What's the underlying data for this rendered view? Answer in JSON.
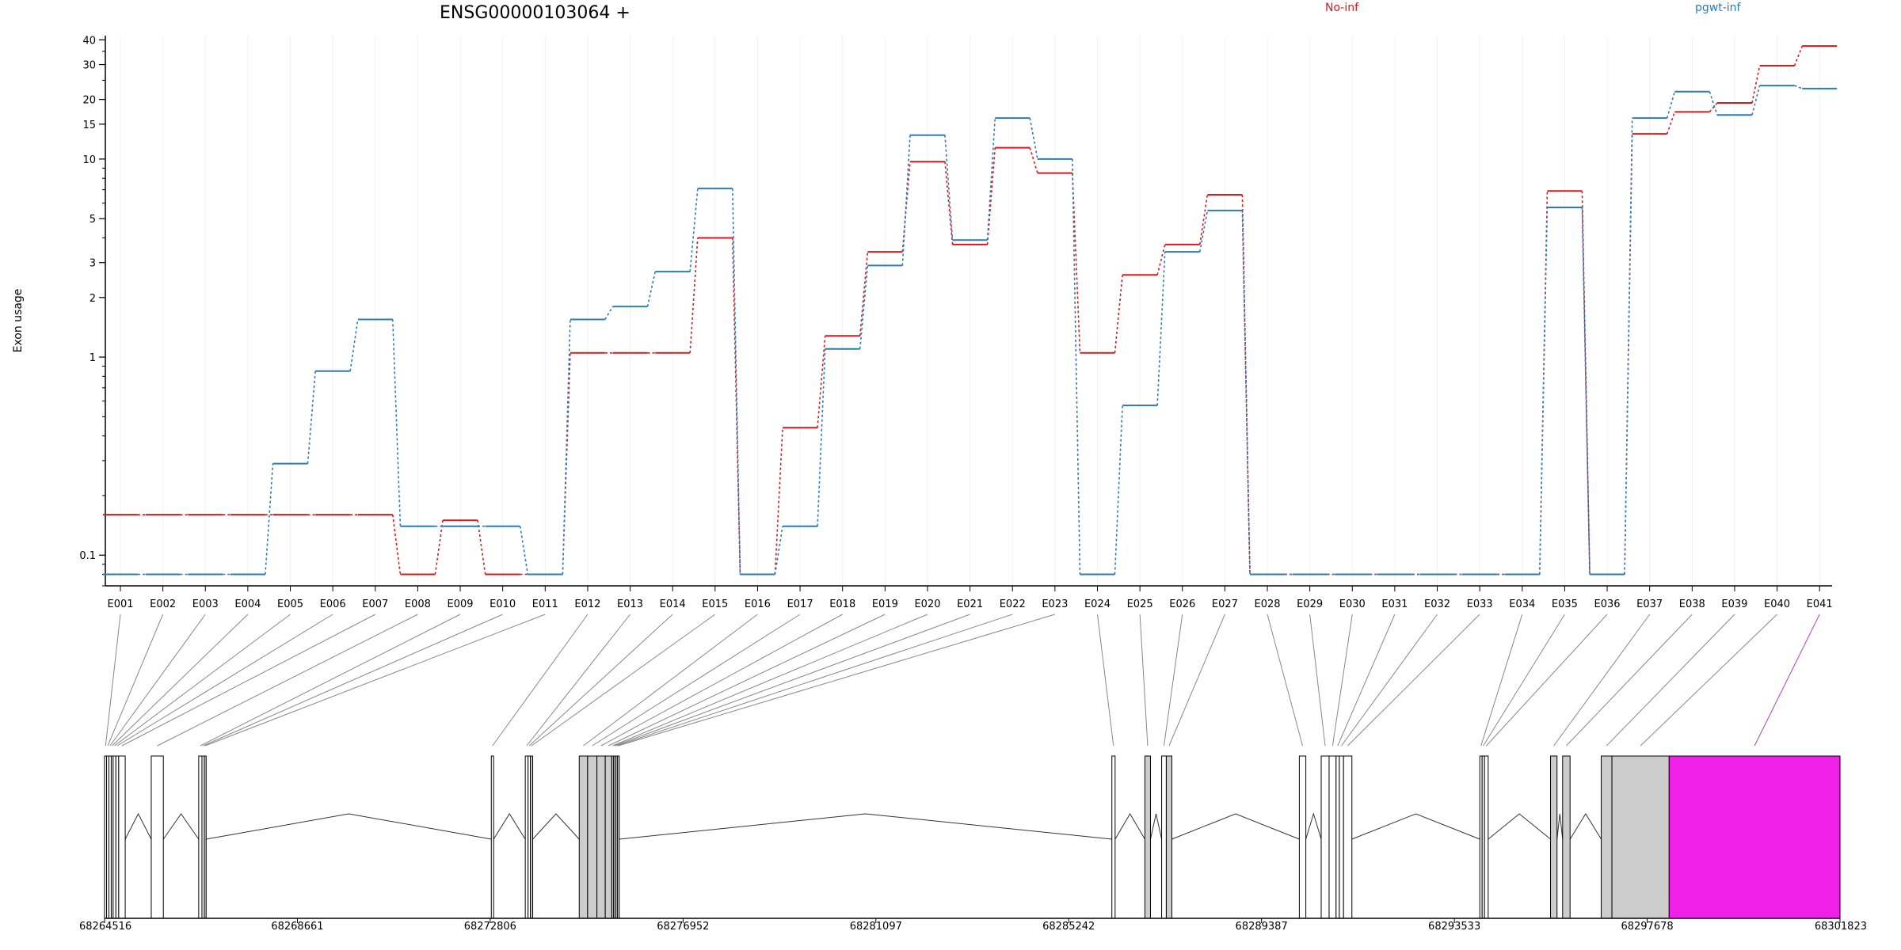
{
  "chart_data": {
    "type": "line",
    "title": "ENSG00000103064 +",
    "ylabel": "Exon usage",
    "xlabel": "",
    "y_scale": "log",
    "ylim": [
      0.07,
      42
    ],
    "y_ticks": [
      0.1,
      1,
      2,
      3,
      5,
      10,
      15,
      20,
      30,
      40
    ],
    "grid": "vertical-light",
    "legend_placement": "top-right",
    "categories": [
      "E001",
      "E002",
      "E003",
      "E004",
      "E005",
      "E006",
      "E007",
      "E008",
      "E009",
      "E010",
      "E011",
      "E012",
      "E013",
      "E014",
      "E015",
      "E016",
      "E017",
      "E018",
      "E019",
      "E020",
      "E021",
      "E022",
      "E023",
      "E024",
      "E025",
      "E026",
      "E027",
      "E028",
      "E029",
      "E030",
      "E031",
      "E032",
      "E033",
      "E034",
      "E035",
      "E036",
      "E037",
      "E038",
      "E039",
      "E040",
      "E041"
    ],
    "series": [
      {
        "name": "No-inf",
        "color": "#d7191c",
        "values": [
          0.16,
          0.16,
          0.16,
          0.16,
          0.16,
          0.16,
          0.16,
          0.08,
          0.15,
          0.08,
          0.08,
          1.05,
          1.05,
          1.05,
          4.0,
          0.08,
          0.44,
          1.28,
          3.4,
          9.7,
          3.7,
          11.4,
          8.5,
          1.05,
          2.6,
          3.7,
          6.6,
          0.08,
          0.08,
          0.08,
          0.08,
          0.08,
          0.08,
          0.08,
          6.9,
          0.08,
          13.4,
          17.3,
          19.2,
          29.6,
          37.2
        ]
      },
      {
        "name": "pgwt-inf",
        "color": "#2c7bb6",
        "values": [
          0.08,
          0.08,
          0.08,
          0.08,
          0.29,
          0.85,
          1.55,
          0.14,
          0.14,
          0.14,
          0.08,
          1.55,
          1.8,
          2.7,
          7.1,
          0.08,
          0.14,
          1.1,
          2.9,
          13.2,
          3.9,
          16.1,
          10.0,
          0.08,
          0.57,
          3.4,
          5.5,
          0.08,
          0.08,
          0.08,
          0.08,
          0.08,
          0.08,
          0.08,
          5.7,
          0.08,
          16.1,
          21.9,
          16.7,
          23.5,
          22.7
        ]
      }
    ],
    "gene_model": {
      "coordinate_ticks": [
        "68264516",
        "68268661",
        "68272806",
        "68276952",
        "68281097",
        "68285242",
        "68289387",
        "68293533",
        "68297678",
        "68301823"
      ],
      "coord_start": 68264516,
      "coord_end": 68301823,
      "highlight_color": "#f020e8",
      "exon_fill_colors": [
        "#ffffff",
        "#cccccc"
      ],
      "exons": [
        {
          "id": "E001",
          "start": 68264516,
          "end": 68264560,
          "fill": "white"
        },
        {
          "id": "E002",
          "start": 68264560,
          "end": 68264610,
          "fill": "white"
        },
        {
          "id": "E003",
          "start": 68264610,
          "end": 68264660,
          "fill": "white"
        },
        {
          "id": "E004",
          "start": 68264660,
          "end": 68264700,
          "fill": "white"
        },
        {
          "id": "E005",
          "start": 68264700,
          "end": 68264760,
          "fill": "white"
        },
        {
          "id": "E006",
          "start": 68264760,
          "end": 68264820,
          "fill": "white"
        },
        {
          "id": "E007",
          "start": 68264820,
          "end": 68264960,
          "fill": "white"
        },
        {
          "id": "E008",
          "start": 68265520,
          "end": 68265780,
          "fill": "white"
        },
        {
          "id": "E009",
          "start": 68266540,
          "end": 68266610,
          "fill": "white"
        },
        {
          "id": "E010",
          "start": 68266610,
          "end": 68266660,
          "fill": "white"
        },
        {
          "id": "E011",
          "start": 68266660,
          "end": 68266700,
          "fill": "grey"
        },
        {
          "id": "E012",
          "start": 68272830,
          "end": 68272880,
          "fill": "white"
        },
        {
          "id": "E013",
          "start": 68273560,
          "end": 68273620,
          "fill": "white"
        },
        {
          "id": "E014",
          "start": 68273620,
          "end": 68273670,
          "fill": "white"
        },
        {
          "id": "E015",
          "start": 68273670,
          "end": 68273720,
          "fill": "grey"
        },
        {
          "id": "E016",
          "start": 68274720,
          "end": 68274900,
          "fill": "grey"
        },
        {
          "id": "E017",
          "start": 68274900,
          "end": 68275100,
          "fill": "grey"
        },
        {
          "id": "E018",
          "start": 68275100,
          "end": 68275280,
          "fill": "grey"
        },
        {
          "id": "E019",
          "start": 68275280,
          "end": 68275420,
          "fill": "grey"
        },
        {
          "id": "E020",
          "start": 68275420,
          "end": 68275460,
          "fill": "grey"
        },
        {
          "id": "E021",
          "start": 68275460,
          "end": 68275500,
          "fill": "grey"
        },
        {
          "id": "E022",
          "start": 68275500,
          "end": 68275540,
          "fill": "grey"
        },
        {
          "id": "E023",
          "start": 68275540,
          "end": 68275580,
          "fill": "grey"
        },
        {
          "id": "E024",
          "start": 68286170,
          "end": 68286240,
          "fill": "white"
        },
        {
          "id": "E025",
          "start": 68286880,
          "end": 68287000,
          "fill": "grey"
        },
        {
          "id": "E026",
          "start": 68287240,
          "end": 68287340,
          "fill": "white"
        },
        {
          "id": "E027",
          "start": 68287340,
          "end": 68287460,
          "fill": "grey"
        },
        {
          "id": "E028",
          "start": 68290200,
          "end": 68290340,
          "fill": "white"
        },
        {
          "id": "E029",
          "start": 68290670,
          "end": 68290840,
          "fill": "white"
        },
        {
          "id": "E030",
          "start": 68290840,
          "end": 68290990,
          "fill": "white"
        },
        {
          "id": "E031",
          "start": 68290990,
          "end": 68291060,
          "fill": "white"
        },
        {
          "id": "E032",
          "start": 68291060,
          "end": 68291150,
          "fill": "white"
        },
        {
          "id": "E033",
          "start": 68291150,
          "end": 68291330,
          "fill": "white"
        },
        {
          "id": "E034",
          "start": 68294080,
          "end": 68294130,
          "fill": "white"
        },
        {
          "id": "E035",
          "start": 68294130,
          "end": 68294180,
          "fill": "white"
        },
        {
          "id": "E036",
          "start": 68294180,
          "end": 68294260,
          "fill": "white"
        },
        {
          "id": "E037",
          "start": 68295600,
          "end": 68295740,
          "fill": "grey"
        },
        {
          "id": "E038",
          "start": 68295860,
          "end": 68296020,
          "fill": "grey"
        },
        {
          "id": "E039",
          "start": 68296690,
          "end": 68296920,
          "fill": "grey"
        },
        {
          "id": "E040",
          "start": 68296920,
          "end": 68298150,
          "fill": "grey"
        },
        {
          "id": "E041",
          "start": 68298150,
          "end": 68301823,
          "fill": "highlight"
        }
      ],
      "junctions": [
        [
          68264960,
          68265520
        ],
        [
          68265780,
          68266540
        ],
        [
          68266700,
          68272830
        ],
        [
          68272880,
          68273560
        ],
        [
          68273720,
          68274720
        ],
        [
          68275580,
          68286170
        ],
        [
          68286240,
          68286880
        ],
        [
          68287000,
          68287240
        ],
        [
          68287460,
          68290200
        ],
        [
          68290340,
          68290670
        ],
        [
          68291330,
          68294080
        ],
        [
          68294260,
          68295600
        ],
        [
          68295740,
          68295860
        ],
        [
          68296020,
          68296690
        ]
      ]
    }
  }
}
